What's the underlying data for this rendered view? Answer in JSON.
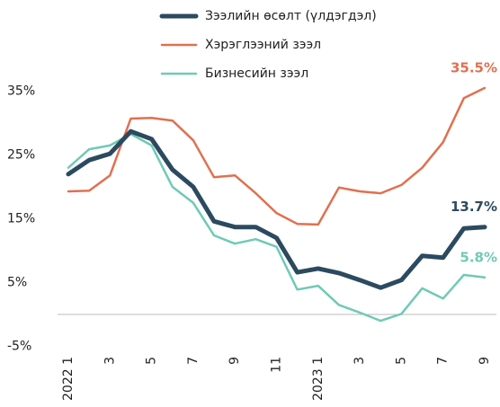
{
  "chart_data": {
    "type": "line",
    "categories": [
      "2022 1",
      null,
      "3",
      null,
      "5",
      null,
      "7",
      null,
      "9",
      null,
      "11",
      null,
      "2023 1",
      null,
      "3",
      null,
      "5",
      null,
      "7",
      null,
      "9"
    ],
    "series": [
      {
        "name": "Зээлийн өсөлт (үлдэгдэл)",
        "color": "#2c4a5f",
        "values": [
          22.0,
          24.2,
          25.2,
          28.7,
          27.5,
          22.7,
          20.0,
          14.6,
          13.7,
          13.7,
          12.0,
          6.6,
          7.2,
          6.5,
          5.4,
          4.2,
          5.4,
          9.2,
          8.9,
          13.5,
          13.7
        ],
        "value_labels": [
          null,
          null,
          null,
          null,
          null,
          null,
          null,
          null,
          null,
          null,
          null,
          null,
          null,
          null,
          null,
          null,
          null,
          null,
          null,
          null,
          "13.7%"
        ]
      },
      {
        "name": "Хэрэглээний зээл",
        "color": "#e07050",
        "values": [
          19.3,
          19.4,
          21.8,
          30.7,
          30.8,
          30.4,
          27.3,
          21.5,
          21.8,
          19.0,
          15.9,
          14.2,
          14.1,
          19.9,
          19.3,
          19.0,
          20.3,
          23.0,
          27.0,
          33.9,
          35.5
        ],
        "value_labels": [
          null,
          null,
          null,
          null,
          null,
          null,
          null,
          null,
          null,
          null,
          null,
          null,
          null,
          null,
          null,
          null,
          null,
          null,
          null,
          null,
          "35.5%"
        ]
      },
      {
        "name": "Бизнесийн зээл",
        "color": "#6fcab5",
        "values": [
          23.0,
          25.9,
          26.5,
          28.3,
          26.5,
          20.0,
          17.5,
          12.4,
          11.1,
          11.8,
          10.6,
          3.9,
          4.5,
          1.5,
          0.3,
          -1.0,
          0.1,
          4.1,
          2.5,
          6.2,
          5.8
        ],
        "value_labels": [
          null,
          null,
          null,
          null,
          null,
          null,
          null,
          null,
          null,
          null,
          null,
          null,
          null,
          null,
          null,
          null,
          null,
          null,
          null,
          null,
          "5.8%"
        ]
      }
    ],
    "ylim": [
      -5,
      40
    ],
    "yticks": [
      {
        "value": -5,
        "label": "-5%"
      },
      {
        "value": 5,
        "label": "5%"
      },
      {
        "value": 15,
        "label": "15%"
      },
      {
        "value": 25,
        "label": "25%"
      },
      {
        "value": 35,
        "label": "35%"
      }
    ],
    "grid": false,
    "legend": "top"
  }
}
